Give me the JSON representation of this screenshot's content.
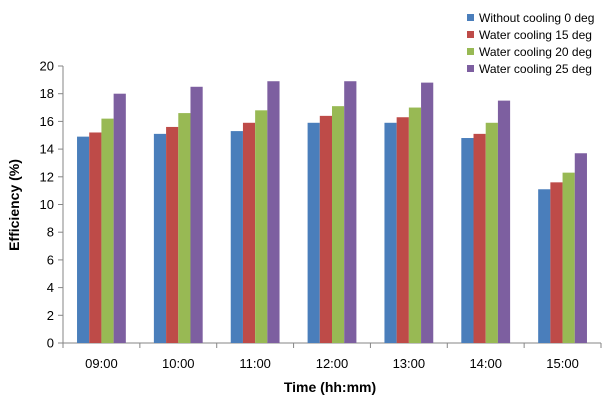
{
  "chart_data": {
    "type": "bar",
    "title": "",
    "xlabel": "Time (hh:mm)",
    "ylabel": "Efficiency  (%)",
    "ylim": [
      0,
      20
    ],
    "yticks": [
      0,
      2,
      4,
      6,
      8,
      10,
      12,
      14,
      16,
      18,
      20
    ],
    "grid": false,
    "legend_position": "top-right",
    "categories": [
      "09:00",
      "10:00",
      "11:00",
      "12:00",
      "13:00",
      "14:00",
      "15:00"
    ],
    "series": [
      {
        "name": "Without cooling 0 deg",
        "color": "#4a7ebb",
        "values": [
          14.9,
          15.1,
          15.3,
          15.9,
          15.9,
          14.8,
          11.1
        ]
      },
      {
        "name": "Water cooling 15 deg",
        "color": "#be4b48",
        "values": [
          15.2,
          15.6,
          15.9,
          16.4,
          16.3,
          15.1,
          11.6
        ]
      },
      {
        "name": "Water cooling 20 deg",
        "color": "#98b954",
        "values": [
          16.2,
          16.6,
          16.8,
          17.1,
          17.0,
          15.9,
          12.3
        ]
      },
      {
        "name": "Water cooling 25 deg",
        "color": "#7d5fa0",
        "values": [
          18.0,
          18.5,
          18.9,
          18.9,
          18.8,
          17.5,
          13.7
        ]
      }
    ]
  }
}
